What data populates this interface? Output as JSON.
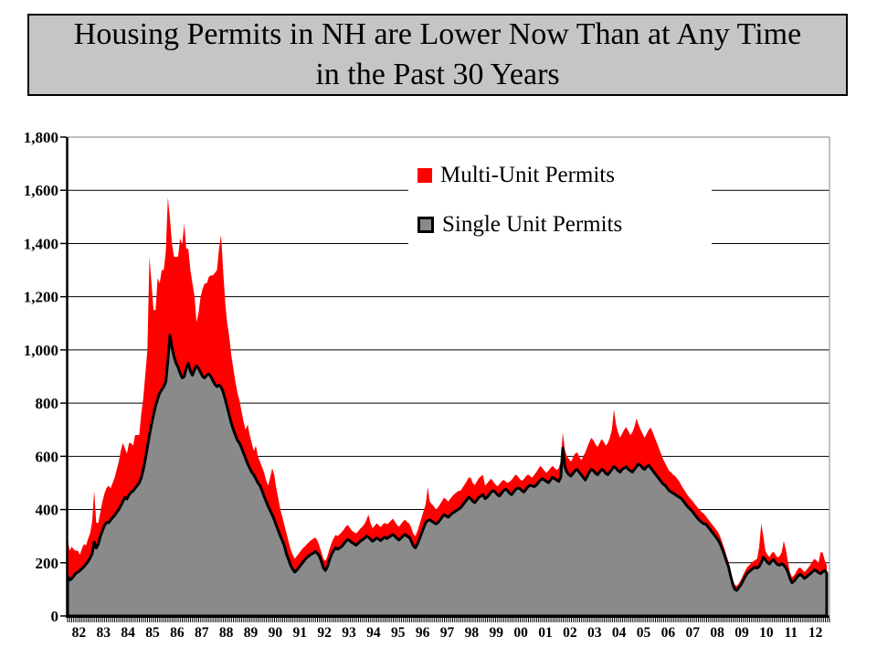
{
  "title": {
    "line1": "Housing Permits in NH are Lower Now Than at Any Time",
    "line2": "in the Past 30 Years"
  },
  "legend": {
    "items": [
      {
        "label": "Multi-Unit Permits",
        "color": "#ff0000"
      },
      {
        "label": "Single Unit Permits",
        "color": "#8a8a8a"
      }
    ]
  },
  "colors": {
    "multi_unit": "#ff0000",
    "single_unit": "#8a8a8a",
    "title_bar_bg": "#c5c5c5",
    "plot_border": "#999999",
    "gridline": "#000000"
  },
  "chart_data": {
    "type": "area",
    "stacked": true,
    "frequency": "monthly",
    "x_start_year": 1982,
    "x_tick_labels": [
      "82",
      "83",
      "84",
      "85",
      "86",
      "87",
      "88",
      "89",
      "90",
      "91",
      "92",
      "93",
      "94",
      "95",
      "96",
      "97",
      "98",
      "99",
      "00",
      "01",
      "02",
      "03",
      "04",
      "05",
      "06",
      "07",
      "08",
      "09",
      "10",
      "11",
      "12"
    ],
    "y_tick_labels": [
      "0",
      "200",
      "400",
      "600",
      "800",
      "1,000",
      "1,200",
      "1,400",
      "1,600",
      "1,800"
    ],
    "ylim": [
      0,
      1800
    ],
    "y_gridline_step": 200,
    "legend_position": "upper-center",
    "series": [
      {
        "name": "Single Unit Permits",
        "color": "#8a8a8a",
        "values": [
          150,
          135,
          140,
          150,
          160,
          165,
          170,
          178,
          185,
          195,
          205,
          218,
          235,
          278,
          255,
          270,
          300,
          320,
          340,
          352,
          350,
          360,
          370,
          378,
          390,
          400,
          415,
          430,
          445,
          440,
          455,
          465,
          470,
          480,
          490,
          500,
          520,
          550,
          590,
          635,
          680,
          720,
          755,
          790,
          815,
          838,
          850,
          862,
          880,
          960,
          1055,
          1010,
          975,
          950,
          935,
          912,
          895,
          900,
          930,
          950,
          920,
          905,
          925,
          940,
          930,
          915,
          900,
          895,
          905,
          910,
          900,
          885,
          870,
          862,
          868,
          860,
          842,
          815,
          785,
          755,
          725,
          700,
          680,
          660,
          650,
          632,
          612,
          592,
          572,
          556,
          540,
          530,
          516,
          500,
          490,
          472,
          450,
          432,
          412,
          396,
          380,
          362,
          340,
          320,
          300,
          282,
          262,
          232,
          212,
          190,
          176,
          165,
          172,
          182,
          192,
          202,
          212,
          220,
          226,
          232,
          236,
          242,
          236,
          226,
          206,
          181,
          171,
          186,
          211,
          231,
          246,
          256,
          251,
          256,
          261,
          271,
          281,
          288,
          282,
          276,
          271,
          266,
          273,
          281,
          286,
          291,
          300,
          296,
          289,
          281,
          286,
          293,
          289,
          283,
          291,
          296,
          291,
          296,
          301,
          306,
          299,
          291,
          286,
          293,
          301,
          306,
          299,
          296,
          281,
          263,
          256,
          271,
          291,
          311,
          331,
          351,
          358,
          361,
          356,
          351,
          346,
          351,
          361,
          371,
          381,
          376,
          371,
          379,
          386,
          391,
          396,
          401,
          406,
          416,
          426,
          436,
          446,
          441,
          431,
          426,
          436,
          446,
          451,
          456,
          441,
          446,
          456,
          466,
          471,
          466,
          456,
          451,
          461,
          471,
          476,
          471,
          461,
          456,
          466,
          476,
          481,
          479,
          471,
          466,
          476,
          486,
          491,
          489,
          486,
          491,
          501,
          511,
          516,
          511,
          506,
          501,
          511,
          521,
          516,
          511,
          506,
          521,
          632,
          561,
          541,
          531,
          526,
          536,
          546,
          551,
          541,
          531,
          521,
          511,
          526,
          541,
          551,
          546,
          536,
          531,
          541,
          551,
          546,
          536,
          531,
          541,
          551,
          561,
          556,
          546,
          541,
          551,
          556,
          561,
          551,
          546,
          541,
          551,
          561,
          571,
          566,
          556,
          551,
          561,
          566,
          556,
          546,
          536,
          526,
          516,
          506,
          496,
          491,
          481,
          471,
          466,
          461,
          456,
          451,
          446,
          441,
          431,
          421,
          411,
          403,
          396,
          386,
          376,
          366,
          358,
          351,
          346,
          345,
          335,
          325,
          315,
          305,
          295,
          285,
          270,
          250,
          230,
          205,
          185,
          151,
          121,
          101,
          96,
          106,
          116,
          131,
          146,
          159,
          166,
          173,
          179,
          183,
          180,
          186,
          201,
          221,
          211,
          201,
          196,
          206,
          211,
          201,
          193,
          191,
          197,
          191,
          181,
          166,
          141,
          125,
          131,
          141,
          151,
          156,
          151,
          141,
          146,
          153,
          159,
          166,
          173,
          169,
          163,
          159,
          166,
          171,
          161
        ]
      },
      {
        "name": "Multi-Unit Permits",
        "color": "#ff0000",
        "values": [
          140,
          110,
          120,
          100,
          85,
          80,
          60,
          75,
          85,
          70,
          85,
          92,
          120,
          192,
          95,
          80,
          90,
          110,
          120,
          128,
          140,
          120,
          130,
          142,
          160,
          180,
          205,
          220,
          185,
          170,
          195,
          185,
          170,
          200,
          190,
          180,
          240,
          270,
          320,
          365,
          670,
          530,
          395,
          360,
          455,
          412,
          450,
          438,
          490,
          613,
          440,
          390,
          375,
          400,
          415,
          508,
          500,
          574,
          450,
          430,
          380,
          345,
          280,
          163,
          210,
          285,
          330,
          355,
          345,
          364,
          380,
          395,
          420,
          438,
          512,
          572,
          458,
          365,
          315,
          295,
          255,
          230,
          200,
          180,
          160,
          138,
          118,
          108,
          148,
          124,
          110,
          90,
          124,
          100,
          90,
          88,
          90,
          78,
          78,
          124,
          175,
          168,
          140,
          120,
          100,
          88,
          78,
          78,
          68,
          60,
          54,
          50,
          53,
          53,
          53,
          53,
          50,
          50,
          52,
          53,
          54,
          53,
          49,
          39,
          34,
          34,
          36,
          39,
          41,
          44,
          46,
          49,
          49,
          52,
          54,
          54,
          56,
          54,
          48,
          44,
          44,
          44,
          45,
          47,
          49,
          54,
          60,
          85,
          61,
          49,
          52,
          55,
          53,
          51,
          53,
          54,
          54,
          54,
          57,
          60,
          55,
          51,
          50,
          53,
          55,
          56,
          53,
          52,
          49,
          45,
          44,
          49,
          54,
          59,
          64,
          69,
          126,
          69,
          64,
          61,
          54,
          57,
          59,
          61,
          64,
          62,
          59,
          61,
          64,
          67,
          68,
          69,
          64,
          66,
          68,
          70,
          74,
          79,
          69,
          66,
          69,
          72,
          74,
          74,
          49,
          52,
          52,
          50,
          34,
          29,
          32,
          44,
          44,
          41,
          30,
          29,
          44,
          56,
          56,
          56,
          44,
          36,
          37,
          49,
          49,
          46,
          35,
          31,
          44,
          49,
          51,
          53,
          40,
          35,
          32,
          45,
          45,
          43,
          40,
          37,
          49,
          59,
          58,
          64,
          59,
          59,
          54,
          59,
          64,
          64,
          59,
          54,
          79,
          104,
          109,
          114,
          119,
          114,
          109,
          104,
          109,
          114,
          109,
          104,
          119,
          129,
          149,
          215,
          164,
          144,
          129,
          134,
          144,
          149,
          144,
          134,
          149,
          159,
          181,
          149,
          134,
          129,
          119,
          124,
          134,
          152,
          144,
          134,
          124,
          114,
          104,
          94,
          84,
          79,
          74,
          74,
          69,
          69,
          64,
          59,
          49,
          47,
          45,
          43,
          41,
          40,
          40,
          40,
          40,
          40,
          39,
          38,
          29,
          29,
          29,
          29,
          29,
          29,
          29,
          27,
          25,
          23,
          22,
          19,
          19,
          17,
          17,
          16,
          16,
          19,
          21,
          22,
          23,
          24,
          25,
          26,
          27,
          35,
          74,
          146,
          79,
          34,
          29,
          26,
          29,
          31,
          29,
          27,
          34,
          43,
          91,
          69,
          39,
          24,
          20,
          21,
          24,
          27,
          26,
          24,
          24,
          26,
          29,
          33,
          39,
          42,
          39,
          37,
          81,
          72,
          39,
          29
        ]
      }
    ]
  }
}
